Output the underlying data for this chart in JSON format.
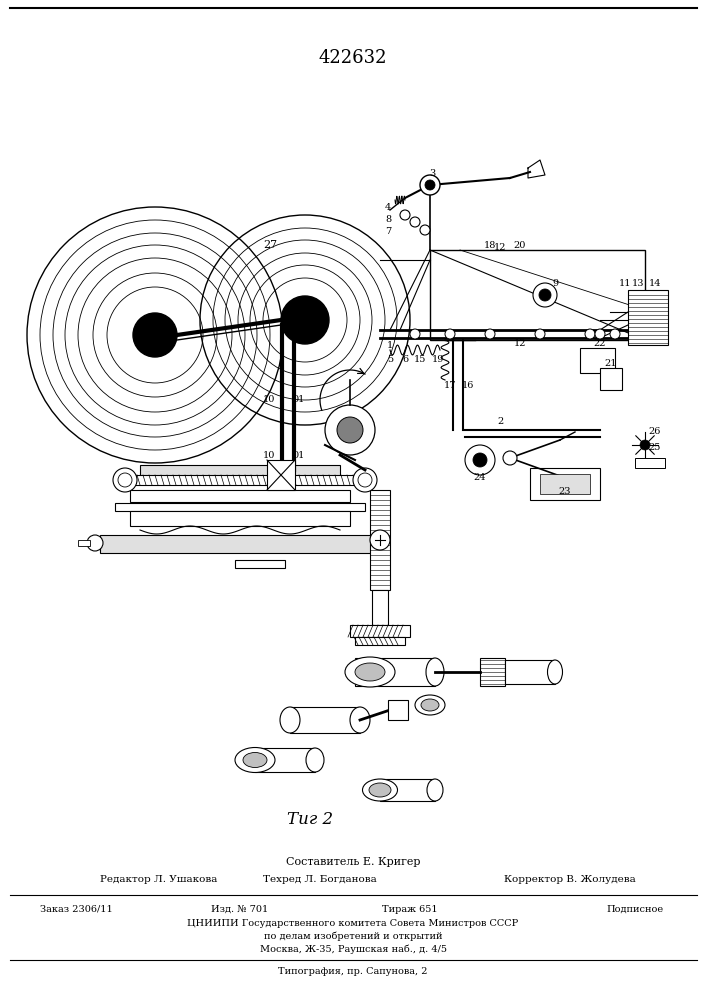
{
  "patent_number": "422632",
  "fig_label": "Τиг 2",
  "composer": "Составитель Е. Кригер",
  "editor": "Редактор Л. Ушакова",
  "techred": "Техред Л. Богданова",
  "corrector": "Корректор В. Жолудева",
  "order": "Заказ 2306/11",
  "izd": "Изд. № 701",
  "tirazh": "Тираж 651",
  "podpisnoe": "Подписное",
  "tsniip": "ЦНИИПИ Государственного комитета Совета Министров СССР",
  "po_delam": "по делам изобретений и открытий",
  "moskva": "Москва, Ж-35, Раушская наб., д. 4/5",
  "tipografia": "Типография, пр. Сапунова, 2",
  "bg_color": "#ffffff",
  "lw": 0.8
}
